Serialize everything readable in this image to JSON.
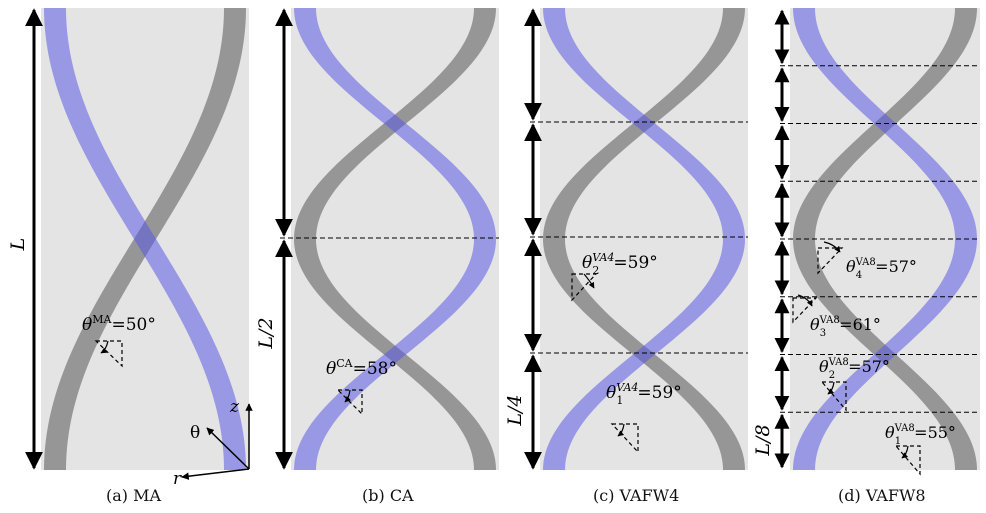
{
  "panels": [
    {
      "id": "ma",
      "caption": "(a) MA",
      "span_label": "L",
      "angles": [
        {
          "base": "θ",
          "sup": "MA",
          "sub": "",
          "value": "=50°"
        }
      ]
    },
    {
      "id": "ca",
      "caption": "(b) CA",
      "span_label": "L/2",
      "angles": [
        {
          "base": "θ",
          "sup": "CA",
          "sub": "",
          "value": "=58°"
        }
      ]
    },
    {
      "id": "vafw4",
      "caption": "(c) VAFW4",
      "span_label": "L/4",
      "angles": [
        {
          "base": "θ",
          "sup": "VA4",
          "sub": "2",
          "value": "=59°"
        },
        {
          "base": "θ",
          "sup": "VA4",
          "sub": "1",
          "value": "=59°"
        }
      ]
    },
    {
      "id": "vafw8",
      "caption": "(d) VAFW8",
      "span_label": "L/8",
      "angles": [
        {
          "base": "θ",
          "sup": "VA8",
          "sub": "4",
          "value": "=57°"
        },
        {
          "base": "θ",
          "sup": "VA8",
          "sub": "3",
          "value": "=61°"
        },
        {
          "base": "θ",
          "sup": "VA8",
          "sub": "2",
          "value": "=57°"
        },
        {
          "base": "θ",
          "sup": "VA8",
          "sub": "1",
          "value": "=55°"
        }
      ]
    }
  ],
  "axes": {
    "z": "z",
    "theta": "θ",
    "r": "r"
  },
  "colors": {
    "background": "#e4e4e4",
    "blue_strip": "#5a5ae6",
    "gray_strip": "#555555",
    "line": "#000000"
  }
}
